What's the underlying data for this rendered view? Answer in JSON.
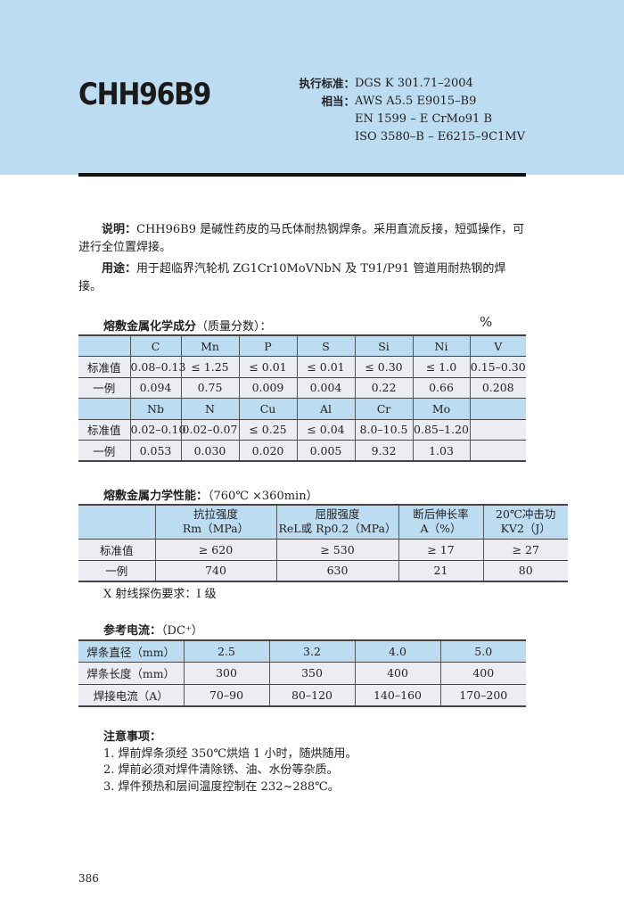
{
  "header": {
    "title": "CHH96B9",
    "standard_label": "执行标准：",
    "standard": "DGS K 301.71–2004",
    "equiv_label": "相当：",
    "equivalents": [
      "AWS A5.5  E9015–B9",
      "EN 1599 – E CrMo91 B",
      "ISO 3580–B – E6215–9C1MV"
    ]
  },
  "description": {
    "label": "说明：",
    "text": "CHH96B9 是碱性药皮的马氏体耐热钢焊条。采用直流反接，短弧操作，可进行全位置焊接。"
  },
  "usage": {
    "label": "用途：",
    "text": "用于超临界汽轮机 ZG1Cr10MoVNbN 及 T91/P91 管道用耐热钢的焊接。"
  },
  "chemistry": {
    "title": "熔敷金属化学成分",
    "subtitle": "（质量分数）：",
    "unit": "%",
    "rows": [
      {
        "type": "h",
        "cells": [
          "",
          "C",
          "Mn",
          "P",
          "S",
          "Si",
          "Ni",
          "V"
        ]
      },
      {
        "type": "d",
        "cells": [
          "标准值",
          "0.08–0.13",
          "≤ 1.25",
          "≤ 0.01",
          "≤ 0.01",
          "≤ 0.30",
          "≤ 1.0",
          "0.15–0.30"
        ]
      },
      {
        "type": "d",
        "cells": [
          "一例",
          "0.094",
          "0.75",
          "0.009",
          "0.004",
          "0.22",
          "0.66",
          "0.208"
        ]
      },
      {
        "type": "h",
        "cells": [
          "",
          "Nb",
          "N",
          "Cu",
          "Al",
          "Cr",
          "Mo",
          ""
        ]
      },
      {
        "type": "d",
        "cells": [
          "标准值",
          "0.02–0.10",
          "0.02–0.07",
          "≤ 0.25",
          "≤ 0.04",
          "8.0–10.5",
          "0.85–1.20",
          ""
        ]
      },
      {
        "type": "d",
        "cells": [
          "一例",
          "0.053",
          "0.030",
          "0.020",
          "0.005",
          "9.32",
          "1.03",
          ""
        ]
      }
    ]
  },
  "mechanical": {
    "title": "熔敷金属力学性能：",
    "subtitle": "（760℃ ×360min）",
    "rows": [
      {
        "type": "h",
        "cells": [
          "",
          "抗拉强度\nRm（MPa）",
          "屈服强度\nReL或 Rp0.2（MPa）",
          "断后伸长率\nA（%）",
          "20℃冲击功\nKV2（J）"
        ]
      },
      {
        "type": "d",
        "cells": [
          "标准值",
          "≥ 620",
          "≥ 530",
          "≥ 17",
          "≥ 27"
        ]
      },
      {
        "type": "d",
        "cells": [
          "一例",
          "740",
          "630",
          "21",
          "80"
        ]
      }
    ],
    "note": "X 射线探伤要求：I 级"
  },
  "current": {
    "title": "参考电流：",
    "subtitle": "（DC⁺）",
    "rows": [
      {
        "type": "h",
        "cells": [
          "焊条直径（mm）",
          "2.5",
          "3.2",
          "4.0",
          "5.0"
        ]
      },
      {
        "type": "d",
        "cells": [
          "焊条长度（mm）",
          "300",
          "350",
          "400",
          "400"
        ]
      },
      {
        "type": "d",
        "cells": [
          "焊接电流（A）",
          "70–90",
          "80–120",
          "140–160",
          "170–200"
        ]
      }
    ]
  },
  "notes": {
    "title": "注意事项：",
    "items": [
      "1. 焊前焊条须经 350℃烘焙 1 小时，随烘随用。",
      "2. 焊前必须对焊件清除锈、油、水份等杂质。",
      "3. 焊件预热和层间温度控制在 232~288℃。"
    ]
  },
  "page_number": "386"
}
